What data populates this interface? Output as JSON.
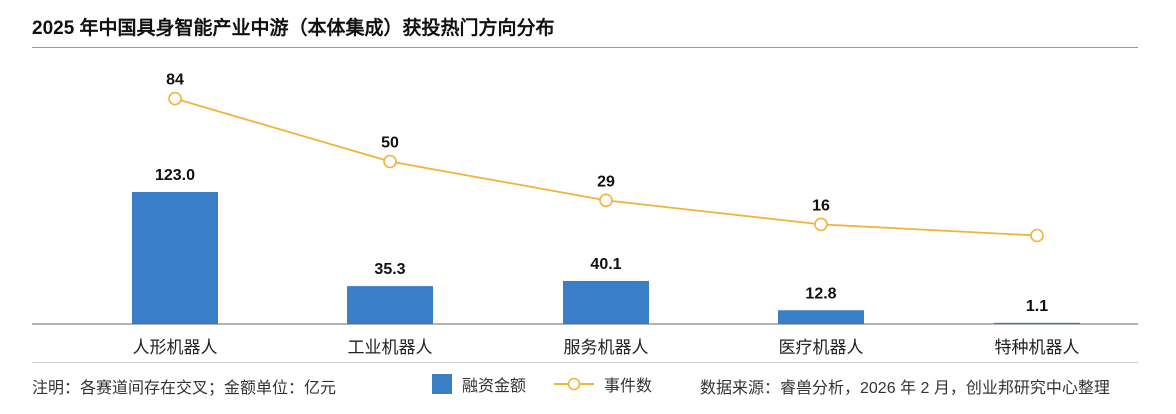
{
  "chart_data": {
    "type": "bar",
    "title": "2025 年中国具身智能产业中游（本体集成）获投热门方向分布",
    "categories": [
      "人形机器人",
      "工业机器人",
      "服务机器人",
      "医疗机器人",
      "特种机器人"
    ],
    "series": [
      {
        "name": "融资金额",
        "type": "bar",
        "values": [
          123.0,
          35.3,
          40.1,
          12.8,
          1.1
        ],
        "labels": [
          "123.0",
          "35.3",
          "40.1",
          "12.8",
          "1.1"
        ],
        "color": "#3a7ec8"
      },
      {
        "name": "事件数",
        "type": "line",
        "values": [
          84,
          50,
          29,
          16,
          10
        ],
        "labels": [
          "84",
          "50",
          "29",
          "16",
          ""
        ],
        "color": "#f0b43a"
      }
    ],
    "grid": false,
    "legend": "bottom"
  },
  "footer": {
    "note": "注明：各赛道间存在交叉；金额单位：亿元",
    "source": "数据来源：睿兽分析，2026 年 2 月，创业邦研究中心整理"
  },
  "colors": {
    "bar": "#3a7ec8",
    "line": "#f0b43a"
  }
}
